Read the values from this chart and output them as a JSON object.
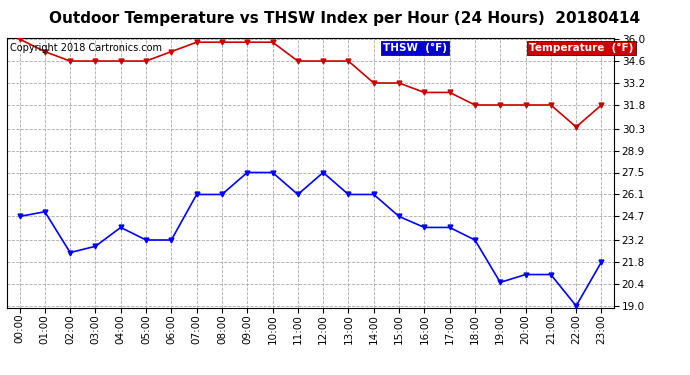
{
  "title": "Outdoor Temperature vs THSW Index per Hour (24 Hours)  20180414",
  "copyright": "Copyright 2018 Cartronics.com",
  "background_color": "#ffffff",
  "plot_background": "#ffffff",
  "grid_color": "#aaaaaa",
  "x_labels": [
    "00:00",
    "01:00",
    "02:00",
    "03:00",
    "04:00",
    "05:00",
    "06:00",
    "07:00",
    "08:00",
    "09:00",
    "10:00",
    "11:00",
    "12:00",
    "13:00",
    "14:00",
    "15:00",
    "16:00",
    "17:00",
    "18:00",
    "19:00",
    "20:00",
    "21:00",
    "22:00",
    "23:00"
  ],
  "thsw_values": [
    24.7,
    25.0,
    22.4,
    22.8,
    24.0,
    23.2,
    23.2,
    26.1,
    26.1,
    27.5,
    27.5,
    26.1,
    27.5,
    26.1,
    26.1,
    24.7,
    24.0,
    24.0,
    23.2,
    20.5,
    21.0,
    21.0,
    19.0,
    21.8
  ],
  "temp_values": [
    36.0,
    35.2,
    34.6,
    34.6,
    34.6,
    34.6,
    35.2,
    35.8,
    35.8,
    35.8,
    35.8,
    34.6,
    34.6,
    34.6,
    33.2,
    33.2,
    32.6,
    32.6,
    31.8,
    31.8,
    31.8,
    31.8,
    30.4,
    31.8
  ],
  "thsw_color": "#0000ff",
  "temp_color": "#cc0000",
  "ylim_min": 19.0,
  "ylim_max": 36.0,
  "yticks": [
    19.0,
    20.4,
    21.8,
    23.2,
    24.7,
    26.1,
    27.5,
    28.9,
    30.3,
    31.8,
    33.2,
    34.6,
    36.0
  ],
  "legend_thsw_label": "THSW  (°F)",
  "legend_temp_label": "Temperature  (°F)",
  "legend_thsw_bg": "#0000cc",
  "legend_temp_bg": "#cc0000",
  "title_fontsize": 11,
  "tick_fontsize": 7.5,
  "copyright_fontsize": 7
}
